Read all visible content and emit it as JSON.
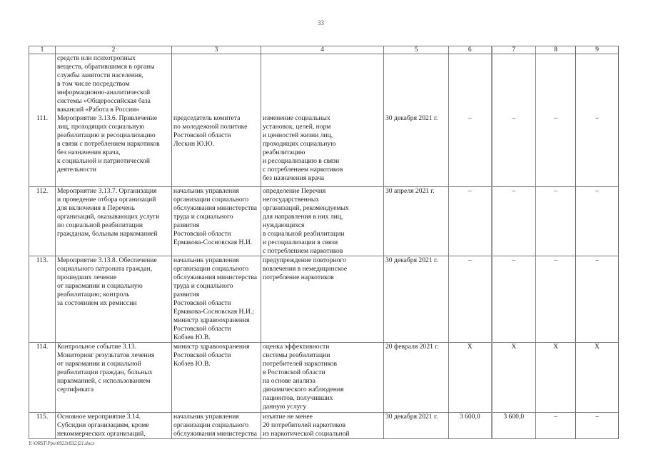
{
  "page_number": "33",
  "columns": [
    "1",
    "2",
    "3",
    "4",
    "5",
    "6",
    "7",
    "8",
    "9"
  ],
  "rows": [
    {
      "num": "111.",
      "continuation": "средств или психотропных\nвеществ, обратившимся в органы\nслужбы занятости населения,\nв том числе посредством\nинформационно-аналитической\nсистемы «Общероссийская база\nвакансий «Работа в России»",
      "activity": "Мероприятие 3.13.6. Привлечение\nлиц, проходящих социальную\nреабилитацию и ресоциализацию\nв связи с потреблением наркотиков\nбез назначения врача,\nк социальной и патриотической\nдеятельности",
      "responsible": "председатель комитета\nпо молодежной политике\nРостовской области\nЛескин Ю.Ю.",
      "result": "изменение социальных\nустановок, целей, норм\nи ценностей жизни лиц,\nпроходящих социальную\nреабилитацию\nи ресоциализацию в связи\nс потреблением наркотиков\nбез назначения врача",
      "date": "30 декабря 2021 г.",
      "c6": "–",
      "c7": "–",
      "c8": "–",
      "c9": "–"
    },
    {
      "num": "112.",
      "activity": "Мероприятие 3.13.7. Организация\nи проведение отбора организаций\nдля включения в Перечень\nорганизаций, оказывающих услуги\nпо социальной реабилитации\nгражданам, больным наркоманией",
      "responsible": "начальник управления\nорганизации социального\nобслуживания министерства\nтруда и социального развития\nРостовской области\nЕрмакова-Сосновская Н.И.",
      "result": "определение Перечня\nнегосударственных\nорганизаций, рекомендуемых\nдля направления в них лиц,\nнуждающихся\nв социальной реабилитации\nи ресоциализации в связи\nс потреблением наркотиков",
      "date": "30 апреля 2021 г.",
      "c6": "–",
      "c7": "–",
      "c8": "–",
      "c9": "–"
    },
    {
      "num": "113.",
      "activity": "Мероприятие 3.13.8. Обеспечение\nсоциального патроната граждан,\nпрошедших лечение\nот наркомании и социальную\nреабилитацию; контроль\nза состоянием их ремиссии",
      "responsible": "начальник управления\nорганизации социального\nобслуживания министерства\nтруда и социального развития\nРостовской области\nЕрмакова-Сосновская Н.И.;\nминистр здравоохранения\nРостовской области\nКобзев Ю.В.",
      "result": "предупреждение повторного\nвовлечения в немедицинское\nпотребление наркотиков",
      "date": "30 декабря 2021 г.",
      "c6": "–",
      "c7": "–",
      "c8": "–",
      "c9": "–"
    },
    {
      "num": "114.",
      "activity": "Контрольное событие 3.13.\nМониторинг результатов лечения\nот наркомании и социальной\nреабилитации граждан, больных\nнаркоманией, с использованием\nсертификата",
      "responsible": "министр здравоохранения\nРостовской области\nКобзев Ю.В.",
      "result": "оценка эффективности\nсистемы реабилитации\nпотребителей наркотиков\nв Ростовской области\nна основе анализа\nдинамического наблюдения\nпациентов, получивших\nданную услугу",
      "date": "20 февраля 2021 г.",
      "c6": "Х",
      "c7": "Х",
      "c8": "Х",
      "c9": "Х"
    },
    {
      "num": "115.",
      "activity": "Основное мероприятие 3.14.\nСубсидии организациям, кроме\nнекоммерческих организаций,",
      "responsible": "начальник управления\nорганизации социального\nобслуживания министерства",
      "result": "изъятие не менее\n20 потребителей наркотиков\nиз наркотической социальной",
      "date": "30 декабря 2021 г.",
      "c6": "3 600,0",
      "c7": "3 600,0",
      "c8": "–",
      "c9": "–"
    }
  ],
  "footer_path": "Y:\\ORST\\Ppo\\0923r832.f21.docx"
}
